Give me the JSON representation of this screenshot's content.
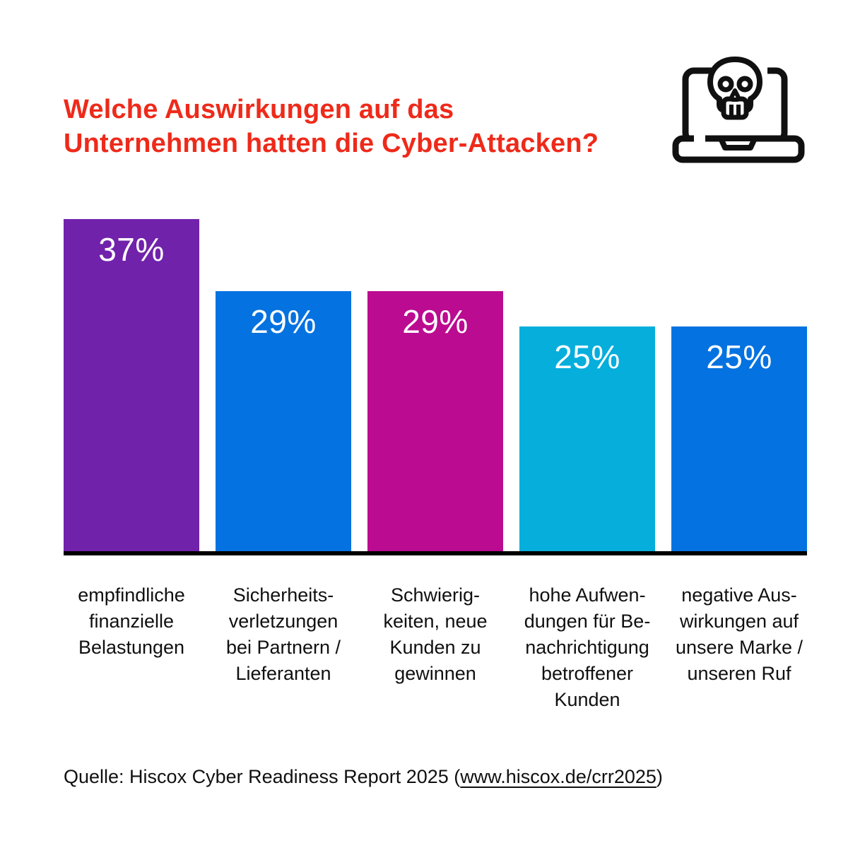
{
  "header": {
    "title": "Welche Auswirkungen auf das\nUnternehmen hatten die Cyber-Attacken?",
    "title_color": "#EE2A1A",
    "icon": "laptop-skull-icon"
  },
  "chart_data": {
    "type": "bar",
    "title": "Welche Auswirkungen auf das Unternehmen hatten die Cyber-Attacken?",
    "unit": "%",
    "categories": [
      "empfindliche\nfinanzielle\nBelastungen",
      "Sicherheits-\nverletzungen\nbei Partnern /\nLieferanten",
      "Schwierig-\nkeiten, neue\nKunden zu\ngewinnen",
      "hohe Aufwen-\ndungen für Be-\nnachrichtigung\nbetroffener\nKunden",
      "negative Aus-\nwirkungen auf\nunsere Marke /\nunseren Ruf"
    ],
    "values": [
      37,
      29,
      29,
      25,
      25
    ],
    "value_labels": [
      "37%",
      "29%",
      "29%",
      "25%",
      "25%"
    ],
    "bar_colors": [
      "#7122AB",
      "#0472E0",
      "#BB0B90",
      "#06AEDC",
      "#0472E0"
    ],
    "value_label_color": "#FFFFFF",
    "baseline_color": "#000000",
    "ylim": [
      0,
      40
    ],
    "grid": false,
    "legend": false,
    "xlabel": "",
    "ylabel": ""
  },
  "source": {
    "prefix": "Quelle: Hiscox Cyber Readiness Report 2025 (",
    "link": "www.hiscox.de/crr2025",
    "suffix": ")"
  }
}
